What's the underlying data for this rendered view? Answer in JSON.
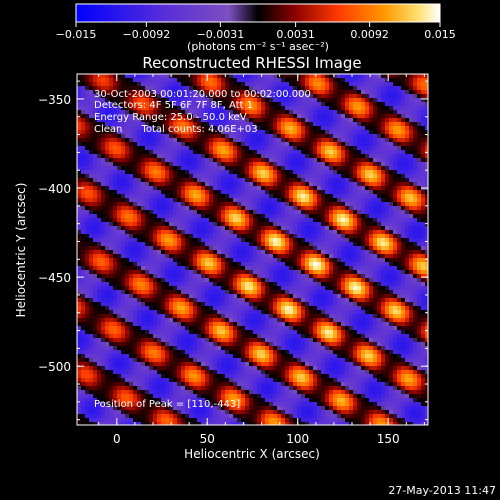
{
  "chart_data": {
    "type": "heatmap",
    "title": "Reconstructed RHESSI Image",
    "xlabel": "Heliocentric X (arcsec)",
    "ylabel": "Heliocentric Y (arcsec)",
    "xlim": [
      -22,
      172
    ],
    "ylim": [
      -533,
      -336
    ],
    "x_ticks": [
      0,
      50,
      100,
      150
    ],
    "x_tick_labels": [
      "0",
      "50",
      "100",
      "150"
    ],
    "y_ticks": [
      -350,
      -400,
      -450,
      -500
    ],
    "y_tick_labels": [
      "−350",
      "−400",
      "−450",
      "−500"
    ],
    "colorbar": {
      "min": -0.015,
      "max": 0.015,
      "ticks": [
        -0.015,
        -0.0092,
        -0.0031,
        0.0031,
        0.0092,
        0.015
      ],
      "tick_labels": [
        "−0.015",
        "−0.0092",
        "−0.0031",
        "0.0031",
        "0.0092",
        "0.015"
      ],
      "label": "(photons cm⁻² s⁻¹ asec⁻²)"
    },
    "annotations": [
      "30-Oct-2003 00:01:20.000 to 00:02:00.000",
      "Detectors: 4F 5F 6F 7F 8F, Att 1",
      "Energy Range: 25.0 - 50.0 keV",
      "Clean      Total counts: 4.06E+03",
      "Position of Peak = [110,-443]"
    ],
    "peak": [
      110,
      -443
    ],
    "timestamp": "27-May-2013 11:47"
  },
  "colors": {
    "background": "#000000",
    "text": "#ffffff",
    "colormap": [
      "#0000ff",
      "#5a2fd8",
      "#7d4fc0",
      "#000000",
      "#8b0000",
      "#ff3a00",
      "#ff9a00",
      "#ffe070",
      "#ffffff"
    ]
  }
}
